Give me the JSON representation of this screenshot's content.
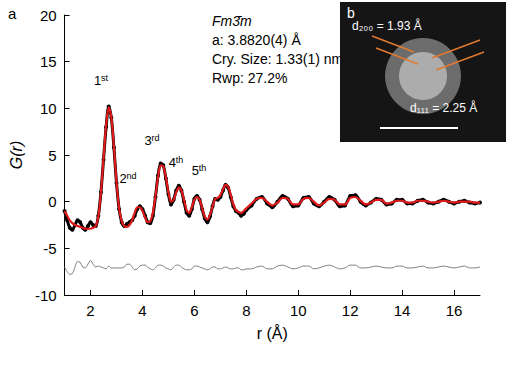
{
  "chart_data": {
    "type": "line",
    "panel_labels": [
      "a",
      "b"
    ],
    "annotations": [
      "Fm3̄m",
      "a: 3.8820(4) Å",
      "Cry. Size: 1.33(1) nm",
      "Rwp: 27.2%"
    ],
    "peak_labels": [
      "1st",
      "2nd",
      "3rd",
      "4th",
      "5th"
    ],
    "inset": {
      "annotations": [
        "d₂₀₀ = 1.93 Å",
        "d₁₁₁ = 2.25 Å"
      ]
    },
    "x_label": "r (Å)",
    "y_label": "G(r)",
    "xlim": [
      1,
      17
    ],
    "ylim": [
      -10,
      20
    ],
    "xticks": [
      2,
      4,
      6,
      8,
      10,
      12,
      14,
      16
    ],
    "yticks": [
      -10,
      -5,
      0,
      5,
      10,
      15,
      20
    ],
    "grid": false,
    "x": [
      1.0,
      1.1,
      1.2,
      1.3,
      1.4,
      1.5,
      1.6,
      1.7,
      1.8,
      1.9,
      2.0,
      2.1,
      2.2,
      2.3,
      2.4,
      2.5,
      2.6,
      2.7,
      2.8,
      2.9,
      3.0,
      3.1,
      3.2,
      3.3,
      3.4,
      3.5,
      3.6,
      3.7,
      3.8,
      3.9,
      4.0,
      4.1,
      4.2,
      4.3,
      4.4,
      4.5,
      4.6,
      4.7,
      4.8,
      4.9,
      5.0,
      5.1,
      5.2,
      5.3,
      5.4,
      5.5,
      5.6,
      5.7,
      5.8,
      5.9,
      6.0,
      6.1,
      6.2,
      6.3,
      6.4,
      6.5,
      6.6,
      6.7,
      6.8,
      6.9,
      7.0,
      7.1,
      7.2,
      7.3,
      7.4,
      7.5,
      7.6,
      7.7,
      7.8,
      7.9,
      8.0,
      8.2,
      8.4,
      8.6,
      8.8,
      9.0,
      9.2,
      9.4,
      9.6,
      9.8,
      10.0,
      10.2,
      10.4,
      10.6,
      10.8,
      11.0,
      11.2,
      11.4,
      11.6,
      11.8,
      12.0,
      12.2,
      12.4,
      12.6,
      12.8,
      13.0,
      13.2,
      13.4,
      13.6,
      13.8,
      14.0,
      14.2,
      14.4,
      14.6,
      14.8,
      15.0,
      15.2,
      15.4,
      15.6,
      15.8,
      16.0,
      16.2,
      16.4,
      16.6,
      16.8,
      17.0
    ],
    "series": [
      {
        "color": "#000000",
        "marker": "circle",
        "line_style": "solid",
        "values": [
          -1.0,
          -2.0,
          -2.8,
          -3.0,
          -2.5,
          -2.0,
          -2.2,
          -2.8,
          -3.0,
          -2.6,
          -2.2,
          -2.5,
          -2.6,
          -1.5,
          1.0,
          4.5,
          8.0,
          10.2,
          9.0,
          5.8,
          2.0,
          -0.8,
          -2.2,
          -2.6,
          -2.4,
          -2.2,
          -2.0,
          -1.5,
          -0.8,
          -0.5,
          -0.8,
          -1.5,
          -2.2,
          -2.3,
          -1.5,
          0.5,
          2.8,
          4.1,
          3.9,
          2.5,
          0.8,
          -0.3,
          0.2,
          1.2,
          1.7,
          1.2,
          0.0,
          -1.2,
          -1.5,
          -0.8,
          0.3,
          0.6,
          0.2,
          -0.8,
          -1.8,
          -2.2,
          -1.6,
          -0.5,
          0.3,
          0.2,
          0.5,
          1.2,
          1.8,
          1.5,
          0.5,
          -0.5,
          -1.0,
          -1.2,
          -1.5,
          -1.3,
          -0.9,
          -0.4,
          0.3,
          0.5,
          -0.2,
          -0.6,
          0.0,
          0.6,
          0.3,
          -0.5,
          -0.4,
          0.4,
          0.5,
          -0.2,
          -0.5,
          0.0,
          0.5,
          0.2,
          -0.5,
          -0.4,
          0.6,
          0.7,
          0.0,
          -0.4,
          -0.1,
          0.3,
          0.2,
          -0.3,
          -0.2,
          0.2,
          0.2,
          -0.2,
          -0.2,
          0.1,
          0.2,
          -0.1,
          -0.2,
          0.0,
          0.2,
          0.0,
          -0.2,
          0.0,
          0.1,
          -0.1,
          -0.2,
          -0.1
        ]
      },
      {
        "color": "#e0191b",
        "line_style": "solid",
        "values": [
          -1.0,
          -1.5,
          -2.0,
          -2.3,
          -2.5,
          -2.6,
          -2.7,
          -2.8,
          -2.9,
          -2.9,
          -2.9,
          -2.8,
          -2.6,
          -1.6,
          1.0,
          4.6,
          8.2,
          10.1,
          9.1,
          5.9,
          2.1,
          -0.7,
          -2.1,
          -2.6,
          -2.7,
          -2.5,
          -2.0,
          -1.2,
          -0.6,
          -0.6,
          -1.0,
          -1.7,
          -2.2,
          -2.1,
          -1.2,
          0.6,
          2.6,
          3.9,
          3.8,
          2.6,
          1.0,
          0.0,
          0.2,
          1.0,
          1.5,
          1.2,
          0.2,
          -0.9,
          -1.2,
          -0.6,
          0.2,
          0.5,
          0.2,
          -0.7,
          -1.6,
          -1.9,
          -1.4,
          -0.5,
          0.3,
          0.4,
          0.7,
          1.3,
          1.8,
          1.6,
          0.7,
          -0.3,
          -0.9,
          -1.1,
          -1.2,
          -1.0,
          -0.7,
          -0.2,
          0.3,
          0.4,
          0.0,
          -0.4,
          -0.1,
          0.4,
          0.3,
          -0.3,
          -0.3,
          0.3,
          0.4,
          0.0,
          -0.4,
          -0.1,
          0.3,
          0.2,
          -0.3,
          -0.3,
          0.4,
          0.5,
          0.1,
          -0.3,
          -0.1,
          0.2,
          0.2,
          -0.2,
          -0.1,
          0.1,
          0.1,
          -0.1,
          -0.1,
          0.1,
          0.1,
          0.0,
          -0.1,
          0.0,
          0.1,
          0.0,
          -0.1,
          0.0,
          0.0,
          0.0,
          -0.1,
          -0.1
        ]
      },
      {
        "color": "#7f7f7f",
        "line_style": "solid",
        "values": [
          -7.0,
          -7.5,
          -7.8,
          -7.7,
          -7.0,
          -6.4,
          -6.5,
          -7.0,
          -7.1,
          -6.7,
          -6.3,
          -6.7,
          -7.0,
          -6.9,
          -7.0,
          -7.1,
          -7.2,
          -6.9,
          -7.1,
          -7.1,
          -7.1,
          -7.1,
          -7.1,
          -7.0,
          -6.7,
          -6.7,
          -7.0,
          -7.3,
          -7.2,
          -6.9,
          -6.8,
          -6.8,
          -7.0,
          -7.2,
          -7.3,
          -7.1,
          -6.8,
          -6.8,
          -6.9,
          -7.1,
          -7.2,
          -7.3,
          -7.0,
          -6.8,
          -6.8,
          -7.0,
          -7.2,
          -7.3,
          -7.3,
          -7.2,
          -6.9,
          -6.9,
          -7.0,
          -7.1,
          -7.2,
          -7.3,
          -7.2,
          -7.0,
          -7.0,
          -7.2,
          -7.2,
          -7.1,
          -7.0,
          -7.1,
          -7.2,
          -7.2,
          -7.1,
          -7.1,
          -7.3,
          -7.3,
          -7.2,
          -7.2,
          -7.0,
          -6.9,
          -7.2,
          -7.2,
          -6.9,
          -6.8,
          -7.0,
          -7.2,
          -7.1,
          -6.9,
          -6.9,
          -7.2,
          -7.1,
          -6.9,
          -6.8,
          -7.0,
          -7.2,
          -7.1,
          -6.8,
          -6.8,
          -7.1,
          -7.1,
          -7.0,
          -6.9,
          -7.0,
          -7.1,
          -7.1,
          -6.9,
          -6.9,
          -7.1,
          -7.1,
          -7.0,
          -6.9,
          -7.1,
          -7.1,
          -7.0,
          -6.9,
          -7.0,
          -7.1,
          -7.0,
          -6.9,
          -7.1,
          -7.1,
          -7.0
        ]
      }
    ]
  }
}
